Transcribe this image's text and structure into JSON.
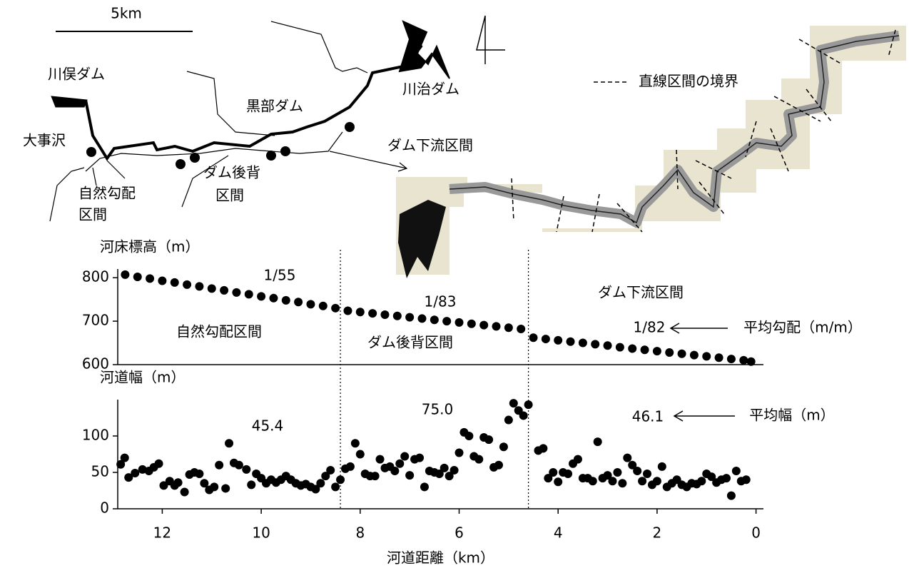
{
  "map": {
    "scale_label": "5km",
    "labels": [
      "川俣ダム",
      "黒部ダム",
      "川治ダム",
      "大事沢",
      "ダム下流区間",
      "ダム後背",
      "区間",
      "自然勾配",
      "区間"
    ],
    "legend": "直線区間の境界"
  },
  "chart_data": [
    {
      "type": "scatter",
      "ylabel": "河床標高（m）",
      "x": [
        12.75,
        12.5,
        12.25,
        12.0,
        11.75,
        11.5,
        11.25,
        11.0,
        10.75,
        10.5,
        10.25,
        10.0,
        9.75,
        9.5,
        9.25,
        9.0,
        8.75,
        8.5,
        8.25,
        8.0,
        7.75,
        7.5,
        7.25,
        7.0,
        6.75,
        6.5,
        6.25,
        6.0,
        5.75,
        5.5,
        5.25,
        5.0,
        4.75,
        4.5,
        4.25,
        4.0,
        3.75,
        3.5,
        3.25,
        3.0,
        2.75,
        2.5,
        2.25,
        2.0,
        1.75,
        1.5,
        1.25,
        1.0,
        0.75,
        0.5,
        0.25,
        0.1
      ],
      "series": [
        {
          "color": "#000000",
          "values": [
            807,
            802,
            798,
            793,
            789,
            784,
            780,
            775,
            771,
            766,
            762,
            757,
            753,
            748,
            744,
            739,
            735,
            730,
            724,
            721,
            718,
            715,
            712,
            709,
            706,
            703,
            700,
            697,
            694,
            691,
            688,
            685,
            682,
            662,
            659,
            656,
            653,
            650,
            647,
            644,
            640,
            637,
            634,
            631,
            628,
            625,
            622,
            619,
            616,
            613,
            610,
            607
          ]
        }
      ],
      "xlim": [
        12.9,
        -0.15
      ],
      "ylim": [
        600,
        820
      ],
      "yticks": [
        600,
        700,
        800
      ],
      "annotations": [
        "1/55",
        "1/83",
        "1/82",
        "自然勾配区間",
        "ダム後背区間",
        "ダム下流区間",
        "平均勾配（m/m）"
      ]
    },
    {
      "type": "scatter",
      "ylabel": "河道幅（m）",
      "xlabel": "河道距離（km）",
      "x": [
        12.84,
        12.76,
        12.68,
        12.55,
        12.4,
        12.27,
        12.17,
        12.07,
        11.97,
        11.85,
        11.75,
        11.68,
        11.55,
        11.45,
        11.35,
        11.25,
        11.15,
        11.05,
        10.95,
        10.85,
        10.72,
        10.65,
        10.55,
        10.45,
        10.3,
        10.2,
        10.1,
        10.0,
        9.9,
        9.8,
        9.7,
        9.6,
        9.5,
        9.4,
        9.3,
        9.2,
        9.1,
        9.0,
        8.9,
        8.8,
        8.7,
        8.6,
        8.5,
        8.4,
        8.3,
        8.2,
        8.1,
        8.0,
        7.9,
        7.8,
        7.7,
        7.6,
        7.5,
        7.4,
        7.3,
        7.2,
        7.1,
        7.0,
        6.9,
        6.8,
        6.7,
        6.6,
        6.5,
        6.4,
        6.3,
        6.2,
        6.1,
        6.0,
        5.9,
        5.8,
        5.7,
        5.6,
        5.5,
        5.4,
        5.3,
        5.2,
        5.1,
        5.0,
        4.9,
        4.8,
        4.7,
        4.6,
        4.4,
        4.3,
        4.2,
        4.1,
        4.0,
        3.9,
        3.8,
        3.7,
        3.6,
        3.5,
        3.4,
        3.3,
        3.2,
        3.1,
        3.0,
        2.9,
        2.8,
        2.7,
        2.6,
        2.5,
        2.4,
        2.3,
        2.2,
        2.1,
        2.0,
        1.9,
        1.8,
        1.7,
        1.6,
        1.5,
        1.4,
        1.3,
        1.2,
        1.1,
        1.0,
        0.9,
        0.8,
        0.7,
        0.6,
        0.5,
        0.4,
        0.3,
        0.2
      ],
      "series": [
        {
          "color": "#000000",
          "values": [
            61,
            70,
            43,
            49,
            54,
            52,
            57,
            62,
            32,
            38,
            32,
            36,
            23,
            47,
            50,
            48,
            35,
            26,
            30,
            60,
            28,
            90,
            63,
            60,
            54,
            33,
            48,
            42,
            35,
            40,
            36,
            40,
            45,
            40,
            35,
            32,
            34,
            30,
            27,
            35,
            45,
            53,
            30,
            40,
            55,
            58,
            90,
            75,
            48,
            45,
            45,
            68,
            56,
            58,
            52,
            62,
            72,
            46,
            68,
            70,
            30,
            52,
            50,
            48,
            56,
            45,
            53,
            77,
            105,
            100,
            72,
            68,
            98,
            95,
            57,
            60,
            85,
            122,
            145,
            135,
            128,
            143,
            80,
            83,
            42,
            50,
            37,
            50,
            48,
            62,
            68,
            42,
            42,
            38,
            92,
            42,
            46,
            38,
            50,
            35,
            70,
            60,
            52,
            38,
            48,
            33,
            38,
            58,
            30,
            35,
            40,
            33,
            30,
            35,
            34,
            38,
            48,
            44,
            36,
            40,
            42,
            18,
            52,
            38,
            40
          ]
        }
      ],
      "xlim": [
        12.9,
        -0.15
      ],
      "ylim": [
        0,
        150
      ],
      "yticks": [
        0,
        50,
        100
      ],
      "xticks": [
        12,
        10,
        8,
        6,
        4,
        2,
        0
      ],
      "vlines": [
        8.4,
        4.6
      ],
      "annotations": [
        "45.4",
        "75.0",
        "46.1",
        "平均幅（m）"
      ]
    }
  ]
}
